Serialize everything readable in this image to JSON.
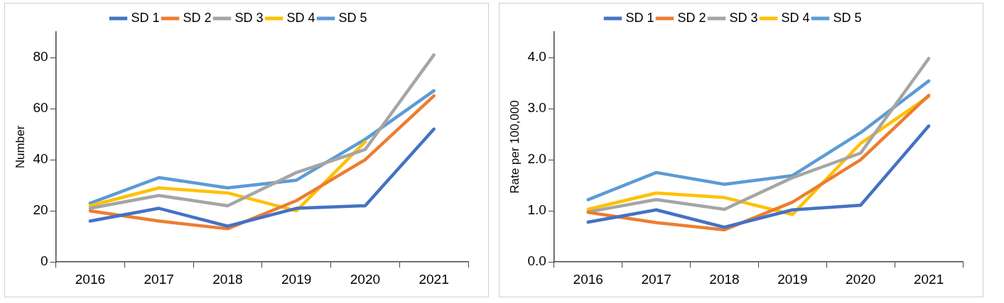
{
  "chart_data": [
    {
      "type": "line",
      "ylabel": "Number",
      "categories": [
        "2016",
        "2017",
        "2018",
        "2019",
        "2020",
        "2021"
      ],
      "ylim": [
        0,
        90
      ],
      "yticks": [
        0,
        20,
        40,
        60,
        80
      ],
      "grid": false,
      "legend": "top",
      "marker": "none",
      "line_style": "solid",
      "series": [
        {
          "name": "SD 1",
          "color": "#4472c4",
          "values": [
            16,
            21,
            14,
            21,
            22,
            52
          ]
        },
        {
          "name": "SD 2",
          "color": "#ed7d31",
          "values": [
            20,
            16,
            13,
            24,
            40,
            65
          ]
        },
        {
          "name": "SD 3",
          "color": "#a5a5a5",
          "values": [
            21,
            26,
            22,
            35,
            44,
            81
          ]
        },
        {
          "name": "SD 4",
          "color": "#ffc000",
          "values": [
            22,
            29,
            27,
            20,
            47,
            null
          ]
        },
        {
          "name": "SD 5",
          "color": "#5b9bd5",
          "values": [
            23,
            33,
            29,
            32,
            48,
            67
          ]
        }
      ]
    },
    {
      "type": "line",
      "ylabel": "Rate per 100,000",
      "categories": [
        "2016",
        "2017",
        "2018",
        "2019",
        "2020",
        "2021"
      ],
      "ylim": [
        0,
        4.5
      ],
      "yticks": [
        {
          "value": 0,
          "label": "0.0"
        },
        {
          "value": 1,
          "label": "1.0"
        },
        {
          "value": 2,
          "label": "2.0"
        },
        {
          "value": 3,
          "label": "3.0"
        },
        {
          "value": 4,
          "label": "4.0"
        }
      ],
      "grid": false,
      "legend": "top",
      "marker": "none",
      "line_style": "solid",
      "series": [
        {
          "name": "SD 1",
          "color": "#4472c4",
          "values": [
            0.78,
            1.02,
            0.68,
            1.02,
            1.11,
            2.66
          ]
        },
        {
          "name": "SD 2",
          "color": "#ed7d31",
          "values": [
            0.97,
            0.77,
            0.63,
            1.17,
            2.0,
            3.26
          ]
        },
        {
          "name": "SD 3",
          "color": "#a5a5a5",
          "values": [
            0.98,
            1.22,
            1.03,
            1.65,
            2.13,
            3.98
          ]
        },
        {
          "name": "SD 4",
          "color": "#ffc000",
          "values": [
            1.03,
            1.35,
            1.26,
            0.93,
            2.32,
            3.24
          ]
        },
        {
          "name": "SD 5",
          "color": "#5b9bd5",
          "values": [
            1.22,
            1.75,
            1.52,
            1.69,
            2.53,
            3.54
          ]
        }
      ]
    }
  ]
}
